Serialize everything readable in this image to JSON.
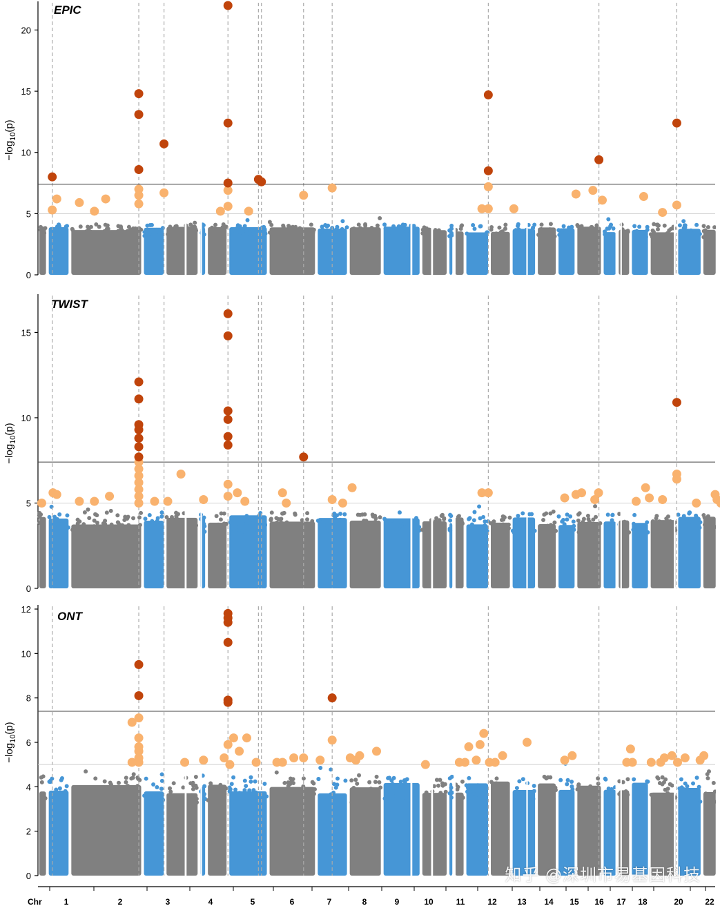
{
  "chart_data": {
    "type": "scatter",
    "subtype": "manhattan",
    "colors": {
      "grey": "#808080",
      "blue": "#4696d6",
      "sig": "#c0440b",
      "sugg": "#f9b26e",
      "guide": "#aaaaaa"
    },
    "genome_wide_threshold": 7.4,
    "suggestive_threshold": 5.0,
    "x_axis_label": "Chr",
    "chromosomes": [
      {
        "label": "1"
      },
      {
        "label": "2"
      },
      {
        "label": "3"
      },
      {
        "label": "4"
      },
      {
        "label": "5"
      },
      {
        "label": "6"
      },
      {
        "label": "7"
      },
      {
        "label": "8"
      },
      {
        "label": "9"
      },
      {
        "label": "10"
      },
      {
        "label": "11"
      },
      {
        "label": "12"
      },
      {
        "label": "13"
      },
      {
        "label": "14"
      },
      {
        "label": "15"
      },
      {
        "label": "16"
      },
      {
        "label": "17"
      },
      {
        "label": "18"
      },
      {
        "label": "20"
      },
      {
        "label": "22"
      }
    ],
    "guide_lines_pos": [
      0.038,
      0.268,
      0.335,
      0.505,
      0.586,
      0.594,
      0.706,
      0.782,
      1.197,
      1.491,
      1.698
    ],
    "panels": [
      {
        "title": "EPIC",
        "ylabel": "−log10(p)",
        "ylim": [
          0,
          22
        ],
        "yticks": [
          0,
          5,
          10,
          15,
          20
        ],
        "sig_points": [
          [
            0.038,
            8.0
          ],
          [
            0.268,
            14.8
          ],
          [
            0.268,
            13.1
          ],
          [
            0.335,
            10.7
          ],
          [
            0.268,
            8.6
          ],
          [
            0.505,
            22.0
          ],
          [
            0.505,
            12.4
          ],
          [
            0.505,
            7.5
          ],
          [
            0.586,
            7.8
          ],
          [
            0.594,
            7.6
          ],
          [
            1.197,
            14.7
          ],
          [
            1.197,
            8.5
          ],
          [
            1.491,
            9.4
          ],
          [
            1.698,
            12.4
          ]
        ],
        "sugg_points": [
          [
            0.038,
            5.3
          ],
          [
            0.05,
            6.2
          ],
          [
            0.11,
            5.9
          ],
          [
            0.15,
            5.2
          ],
          [
            0.18,
            6.2
          ],
          [
            0.268,
            7.0
          ],
          [
            0.268,
            6.5
          ],
          [
            0.268,
            5.8
          ],
          [
            0.335,
            6.7
          ],
          [
            0.485,
            5.2
          ],
          [
            0.505,
            6.9
          ],
          [
            0.505,
            5.6
          ],
          [
            0.56,
            5.2
          ],
          [
            0.706,
            6.5
          ],
          [
            0.782,
            7.1
          ],
          [
            1.18,
            5.4
          ],
          [
            1.197,
            7.2
          ],
          [
            1.197,
            5.4
          ],
          [
            1.265,
            5.4
          ],
          [
            1.43,
            6.6
          ],
          [
            1.475,
            6.9
          ],
          [
            1.5,
            6.1
          ],
          [
            1.61,
            6.4
          ],
          [
            1.66,
            5.1
          ],
          [
            1.698,
            5.7
          ]
        ]
      },
      {
        "title": "TWIST",
        "ylabel": "−log10(p)",
        "ylim": [
          0,
          17
        ],
        "yticks": [
          0,
          5,
          10,
          15
        ],
        "sig_points": [
          [
            0.268,
            12.1
          ],
          [
            0.268,
            11.1
          ],
          [
            0.268,
            9.6
          ],
          [
            0.268,
            9.3
          ],
          [
            0.268,
            8.8
          ],
          [
            0.268,
            8.3
          ],
          [
            0.268,
            7.7
          ],
          [
            0.505,
            16.1
          ],
          [
            0.505,
            14.8
          ],
          [
            0.505,
            10.4
          ],
          [
            0.505,
            9.9
          ],
          [
            0.505,
            8.9
          ],
          [
            0.505,
            8.4
          ],
          [
            0.706,
            7.7
          ],
          [
            1.698,
            10.9
          ]
        ],
        "sugg_points": [
          [
            0.01,
            5.0
          ],
          [
            0.04,
            5.6
          ],
          [
            0.05,
            5.5
          ],
          [
            0.11,
            5.1
          ],
          [
            0.15,
            5.1
          ],
          [
            0.19,
            5.4
          ],
          [
            0.268,
            7.4
          ],
          [
            0.268,
            7.0
          ],
          [
            0.268,
            6.6
          ],
          [
            0.268,
            6.2
          ],
          [
            0.268,
            5.8
          ],
          [
            0.268,
            5.4
          ],
          [
            0.268,
            5.0
          ],
          [
            0.31,
            5.1
          ],
          [
            0.345,
            5.1
          ],
          [
            0.38,
            6.7
          ],
          [
            0.44,
            5.2
          ],
          [
            0.505,
            6.1
          ],
          [
            0.505,
            5.4
          ],
          [
            0.53,
            5.6
          ],
          [
            0.55,
            5.1
          ],
          [
            0.65,
            5.6
          ],
          [
            0.66,
            5.0
          ],
          [
            0.782,
            5.2
          ],
          [
            0.81,
            5.0
          ],
          [
            0.835,
            5.9
          ],
          [
            1.18,
            5.6
          ],
          [
            1.197,
            5.6
          ],
          [
            1.4,
            5.3
          ],
          [
            1.43,
            5.5
          ],
          [
            1.445,
            5.6
          ],
          [
            1.48,
            5.2
          ],
          [
            1.49,
            5.6
          ],
          [
            1.59,
            5.1
          ],
          [
            1.615,
            5.9
          ],
          [
            1.625,
            5.3
          ],
          [
            1.66,
            5.2
          ],
          [
            1.698,
            6.7
          ],
          [
            1.698,
            6.4
          ],
          [
            1.75,
            5.0
          ],
          [
            1.8,
            5.5
          ],
          [
            1.805,
            5.2
          ],
          [
            1.815,
            5.0
          ]
        ]
      },
      {
        "title": "ONT",
        "ylabel": "−log10(p)",
        "ylim": [
          0,
          12
        ],
        "yticks": [
          0,
          2,
          4,
          6,
          8,
          10,
          12
        ],
        "sig_points": [
          [
            0.268,
            9.5
          ],
          [
            0.268,
            8.1
          ],
          [
            0.505,
            11.8
          ],
          [
            0.505,
            11.6
          ],
          [
            0.505,
            11.4
          ],
          [
            0.505,
            10.5
          ],
          [
            0.505,
            7.9
          ],
          [
            0.505,
            7.8
          ],
          [
            0.782,
            8.0
          ]
        ],
        "sugg_points": [
          [
            0.25,
            6.9
          ],
          [
            0.268,
            7.1
          ],
          [
            0.268,
            6.2
          ],
          [
            0.268,
            5.8
          ],
          [
            0.268,
            5.6
          ],
          [
            0.268,
            5.3
          ],
          [
            0.268,
            5.1
          ],
          [
            0.25,
            5.1
          ],
          [
            0.39,
            5.1
          ],
          [
            0.44,
            5.2
          ],
          [
            0.495,
            5.3
          ],
          [
            0.51,
            5.0
          ],
          [
            0.505,
            5.9
          ],
          [
            0.52,
            6.2
          ],
          [
            0.535,
            5.6
          ],
          [
            0.555,
            6.2
          ],
          [
            0.58,
            5.1
          ],
          [
            0.635,
            5.1
          ],
          [
            0.65,
            5.1
          ],
          [
            0.68,
            5.3
          ],
          [
            0.706,
            5.3
          ],
          [
            0.75,
            5.2
          ],
          [
            0.782,
            6.1
          ],
          [
            0.83,
            5.3
          ],
          [
            0.845,
            5.2
          ],
          [
            0.855,
            5.4
          ],
          [
            0.9,
            5.6
          ],
          [
            1.03,
            5.0
          ],
          [
            1.12,
            5.1
          ],
          [
            1.135,
            5.1
          ],
          [
            1.145,
            5.8
          ],
          [
            1.165,
            5.2
          ],
          [
            1.2,
            5.1
          ],
          [
            1.175,
            5.9
          ],
          [
            1.185,
            6.4
          ],
          [
            1.215,
            5.1
          ],
          [
            1.235,
            5.4
          ],
          [
            1.3,
            6.0
          ],
          [
            1.4,
            5.2
          ],
          [
            1.42,
            5.4
          ],
          [
            1.575,
            5.7
          ],
          [
            1.565,
            5.1
          ],
          [
            1.58,
            5.1
          ],
          [
            1.63,
            5.1
          ],
          [
            1.655,
            5.1
          ],
          [
            1.665,
            5.3
          ],
          [
            1.685,
            5.4
          ],
          [
            1.7,
            5.1
          ],
          [
            1.72,
            5.3
          ],
          [
            1.76,
            5.2
          ],
          [
            1.77,
            5.4
          ]
        ]
      }
    ]
  },
  "watermark": "知乎 @深圳市易基因科技"
}
